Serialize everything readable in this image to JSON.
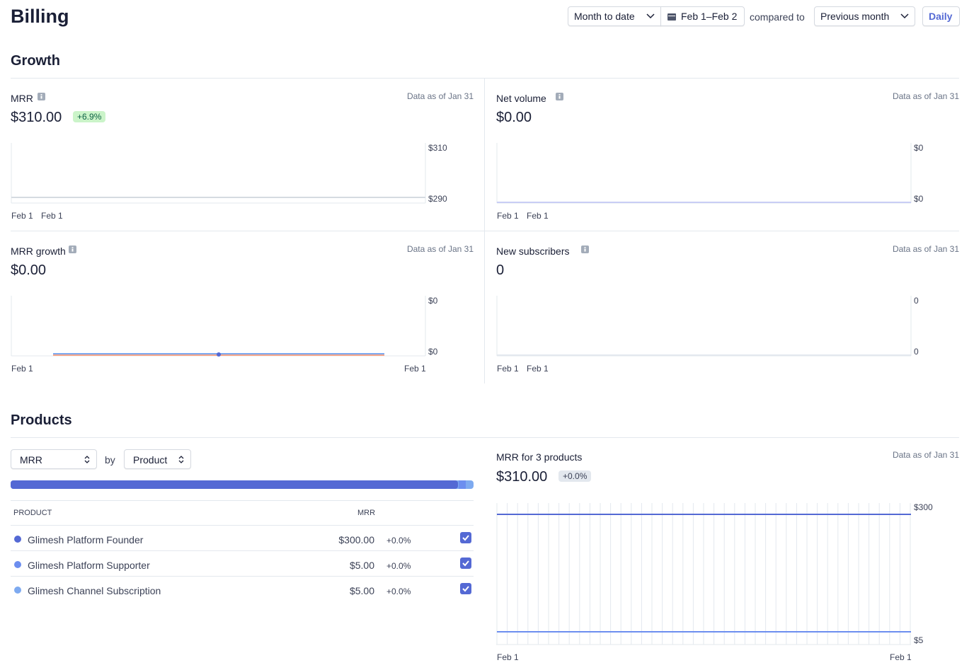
{
  "header": {
    "title": "Billing",
    "range": "Month to date",
    "dates": "Feb 1–Feb 2",
    "compared_label": "compared to",
    "comparison": "Previous month",
    "interval": "Daily"
  },
  "growth": {
    "title": "Growth",
    "cards": [
      {
        "label": "MRR",
        "as_of": "Data as of Jan 31",
        "value": "$310.00",
        "change": "+6.9%",
        "y_labels": [
          "$310",
          "$290"
        ],
        "x_labels": [
          "Feb 1",
          "Feb 1"
        ]
      },
      {
        "label": "Net volume",
        "as_of": "Data as of Jan 31",
        "value": "$0.00",
        "y_labels": [
          "$0",
          "$0"
        ],
        "x_labels": [
          "Feb 1",
          "Feb 1"
        ]
      },
      {
        "label": "MRR growth",
        "as_of": "Data as of Jan 31",
        "value": "$0.00",
        "y_labels": [
          "$0",
          "$0"
        ],
        "x_labels": [
          "Feb 1",
          "Feb 1"
        ]
      },
      {
        "label": "New subscribers",
        "as_of": "Data as of Jan 31",
        "value": "0",
        "y_labels": [
          "0",
          "0"
        ],
        "x_labels": [
          "Feb 1",
          "Feb 1"
        ]
      }
    ]
  },
  "products": {
    "title": "Products",
    "metric": "MRR",
    "by": "by",
    "group": "Product",
    "table": {
      "headers": [
        "PRODUCT",
        "MRR"
      ],
      "rows": [
        {
          "name": "Glimesh Platform Founder",
          "mrr": "$300.00",
          "change": "+0.0%",
          "color": "#5469d4"
        },
        {
          "name": "Glimesh Platform Supporter",
          "mrr": "$5.00",
          "change": "+0.0%",
          "color": "#6c8eef"
        },
        {
          "name": "Glimesh Channel Subscription",
          "mrr": "$5.00",
          "change": "+0.0%",
          "color": "#7eaaf0"
        }
      ]
    },
    "chart": {
      "label": "MRR for 3 products",
      "as_of": "Data as of Jan 31",
      "value": "$310.00",
      "change": "+0.0%",
      "y_labels": [
        "$300",
        "$5"
      ],
      "x_labels": [
        "Feb 1",
        "Feb 1"
      ]
    }
  }
}
